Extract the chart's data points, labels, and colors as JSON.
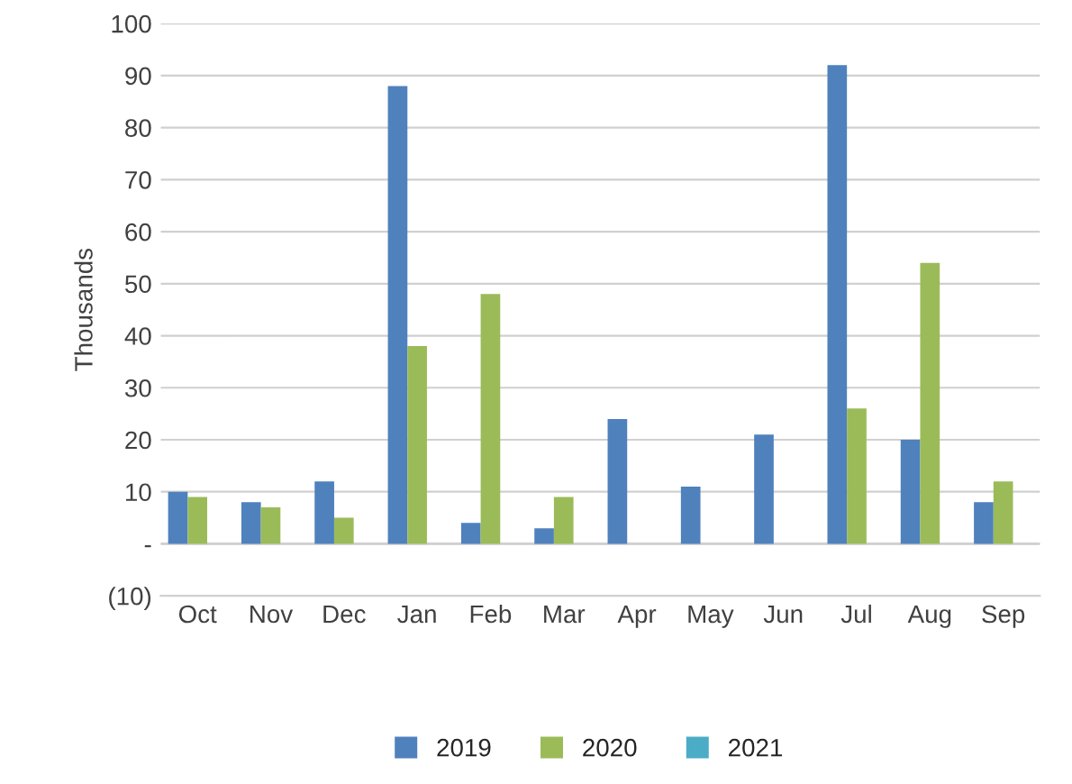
{
  "chart_data": {
    "type": "bar",
    "ylabel": "Thousands",
    "categories": [
      "Oct",
      "Nov",
      "Dec",
      "Jan",
      "Feb",
      "Mar",
      "Apr",
      "May",
      "Jun",
      "Jul",
      "Aug",
      "Sep"
    ],
    "series": [
      {
        "name": "2019",
        "color": "#4f81bd",
        "values": [
          10,
          8,
          12,
          88,
          4,
          3,
          24,
          11,
          21,
          92,
          20,
          8
        ]
      },
      {
        "name": "2020",
        "color": "#9bbb59",
        "values": [
          9,
          7,
          5,
          38,
          48,
          9,
          0,
          0,
          0,
          26,
          54,
          12
        ]
      },
      {
        "name": "2021",
        "color": "#4bacc6",
        "values": [
          0,
          0,
          0,
          0,
          0,
          0,
          0,
          0,
          0,
          0,
          0,
          0
        ]
      }
    ],
    "ylim": [
      -10,
      100
    ],
    "yticks": [
      {
        "value": -10,
        "label": "(10)"
      },
      {
        "value": 0,
        "label": "-"
      },
      10,
      20,
      30,
      40,
      50,
      60,
      70,
      80,
      90,
      100
    ],
    "grid": "y",
    "legend": "bottom"
  }
}
